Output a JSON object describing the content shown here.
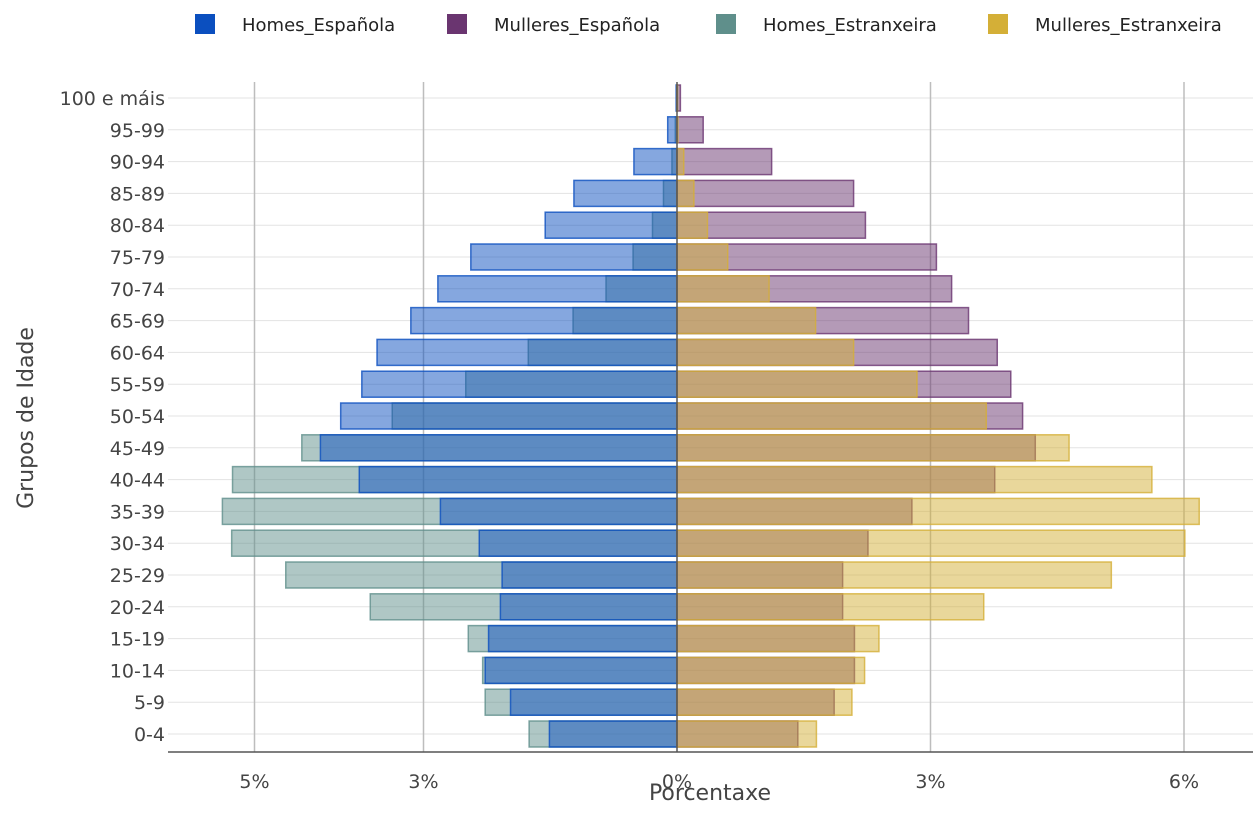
{
  "chart_data": {
    "type": "bar",
    "orientation": "horizontal",
    "barmode": "overlay",
    "xlabel": "Porcentaxe",
    "ylabel": "Grupos de Idade",
    "xlim": [
      -6.0,
      6.8
    ],
    "x_ticks": [
      {
        "value": -5,
        "label": "5%"
      },
      {
        "value": -3,
        "label": "3%"
      },
      {
        "value": 0,
        "label": "0%"
      },
      {
        "value": 3,
        "label": "3%"
      },
      {
        "value": 6,
        "label": "6%"
      }
    ],
    "grid": true,
    "legend_position": "top",
    "categories": [
      "0-4",
      "5-9",
      "10-14",
      "15-19",
      "20-24",
      "25-29",
      "30-34",
      "35-39",
      "40-44",
      "45-49",
      "50-54",
      "55-59",
      "60-64",
      "65-69",
      "70-74",
      "75-79",
      "80-84",
      "85-89",
      "90-94",
      "95-99",
      "100 e máis"
    ],
    "series": [
      {
        "name": "Homes_Estranxeira",
        "color": "#5f8f8b",
        "side": "left",
        "values": [
          1.75,
          2.27,
          2.3,
          2.47,
          3.63,
          4.63,
          5.27,
          5.38,
          5.26,
          4.44,
          3.37,
          2.5,
          1.76,
          1.23,
          0.84,
          0.52,
          0.29,
          0.16,
          0.06,
          0.02,
          0.005
        ]
      },
      {
        "name": "Homes_Española",
        "color": "#0b4fbf",
        "side": "left",
        "values": [
          1.51,
          1.97,
          2.27,
          2.23,
          2.09,
          2.07,
          2.34,
          2.8,
          3.76,
          4.22,
          3.98,
          3.73,
          3.55,
          3.15,
          2.83,
          2.44,
          1.56,
          1.22,
          0.51,
          0.11,
          0.01
        ]
      },
      {
        "name": "Mulleres_Española",
        "color": "#6a3570",
        "side": "right",
        "values": [
          1.43,
          1.86,
          2.1,
          2.1,
          1.96,
          1.96,
          2.26,
          2.78,
          3.76,
          4.24,
          4.09,
          3.95,
          3.79,
          3.45,
          3.25,
          3.07,
          2.23,
          2.09,
          1.12,
          0.31,
          0.04
        ]
      },
      {
        "name": "Mulleres_Estranxeira",
        "color": "#d4af37",
        "side": "right",
        "values": [
          1.65,
          2.07,
          2.22,
          2.39,
          3.63,
          5.14,
          6.01,
          6.18,
          5.62,
          4.64,
          3.66,
          2.84,
          2.09,
          1.64,
          1.09,
          0.6,
          0.36,
          0.2,
          0.08,
          0.01,
          0.003
        ]
      }
    ],
    "legend_order": [
      "Homes_Española",
      "Mulleres_Española",
      "Homes_Estranxeira",
      "Mulleres_Estranxeira"
    ]
  }
}
